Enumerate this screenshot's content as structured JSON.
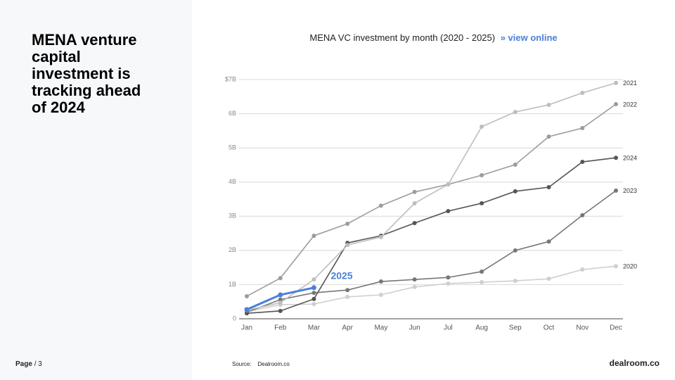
{
  "slide": {
    "title": "MENA venture capital investment is tracking ahead of 2024",
    "page_label": "Page",
    "page_number": "/ 3",
    "source_label": "Source:",
    "source": "Dealroom.co",
    "logo": "dealroom.co"
  },
  "chart_data": {
    "type": "line",
    "title": "MENA VC investment by month (2020 - 2025)",
    "link": "» view online",
    "categories": [
      "Jan",
      "Feb",
      "Mar",
      "Apr",
      "May",
      "Jun",
      "Jul",
      "Aug",
      "Sep",
      "Oct",
      "Nov",
      "Dec"
    ],
    "ylim": [
      0,
      7
    ],
    "yticks": [
      0,
      {
        "value": 1,
        "label": "1B"
      },
      {
        "value": 2,
        "label": "2B"
      },
      {
        "value": 3,
        "label": "3B"
      },
      {
        "value": 4,
        "label": "4B"
      },
      {
        "value": 5,
        "label": "5B"
      },
      {
        "value": 6,
        "label": "6B"
      },
      {
        "value": 7,
        "label": "$7B"
      }
    ],
    "grid": true,
    "series": [
      {
        "name": "2020",
        "color": "#cfcfcf",
        "values": [
          0.21,
          0.41,
          0.43,
          0.64,
          0.7,
          0.93,
          1.03,
          1.07,
          1.11,
          1.17,
          1.44,
          1.54
        ]
      },
      {
        "name": "2023",
        "color": "#777777",
        "values": [
          0.19,
          0.56,
          0.76,
          0.84,
          1.09,
          1.15,
          1.21,
          1.38,
          2.0,
          2.26,
          3.03,
          3.75
        ]
      },
      {
        "name": "2024",
        "color": "#555555",
        "values": [
          0.16,
          0.23,
          0.58,
          2.22,
          2.43,
          2.8,
          3.15,
          3.38,
          3.73,
          3.85,
          4.59,
          4.71
        ]
      },
      {
        "name": "2022",
        "color": "#9c9c9c",
        "values": [
          0.66,
          1.19,
          2.43,
          2.78,
          3.31,
          3.71,
          3.93,
          4.2,
          4.51,
          5.33,
          5.58,
          6.28
        ]
      },
      {
        "name": "2021",
        "color": "#bdbdbd",
        "values": [
          0.25,
          0.47,
          1.15,
          2.16,
          2.39,
          3.38,
          3.93,
          5.62,
          6.05,
          6.26,
          6.61,
          6.9
        ]
      },
      {
        "name": "2025",
        "color": "#4a80d9",
        "values": [
          0.27,
          0.7,
          0.91,
          null,
          null,
          null,
          null,
          null,
          null,
          null,
          null,
          null
        ]
      }
    ]
  }
}
